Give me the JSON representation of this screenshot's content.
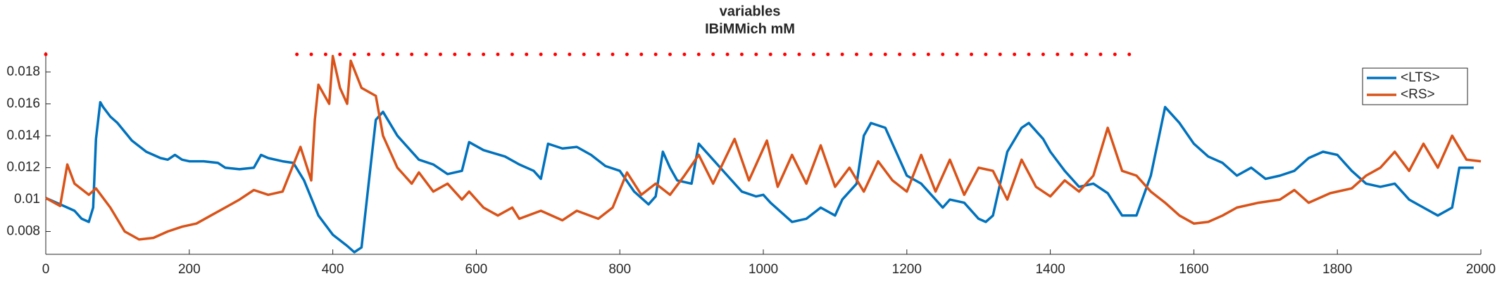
{
  "chart_data": {
    "type": "line",
    "title": "variables",
    "subtitle": "IBiMMich mM",
    "xlim": [
      0,
      2000
    ],
    "xticks": [
      0,
      200,
      400,
      600,
      800,
      1000,
      1200,
      1400,
      1600,
      1800,
      2000
    ],
    "ylim": [
      0.00657,
      0.01925
    ],
    "yticks": [
      0.008,
      0.01,
      0.012,
      0.014,
      0.016,
      0.018
    ],
    "legend": "top-right",
    "series": [
      {
        "name": "<LTS>",
        "color": "#0072bd",
        "x": [
          0,
          20,
          40,
          50,
          60,
          66,
          70,
          76,
          80,
          90,
          100,
          120,
          140,
          160,
          170,
          180,
          190,
          200,
          220,
          240,
          250,
          270,
          290,
          300,
          310,
          330,
          345,
          360,
          380,
          400,
          420,
          430,
          440,
          450,
          460,
          470,
          490,
          520,
          540,
          560,
          580,
          590,
          610,
          640,
          660,
          680,
          690,
          700,
          720,
          740,
          760,
          780,
          800,
          820,
          840,
          850,
          860,
          870,
          880,
          900,
          910,
          930,
          950,
          970,
          990,
          1000,
          1010,
          1030,
          1040,
          1060,
          1080,
          1100,
          1110,
          1130,
          1140,
          1150,
          1170,
          1190,
          1200,
          1220,
          1240,
          1250,
          1260,
          1280,
          1300,
          1310,
          1320,
          1330,
          1340,
          1360,
          1370,
          1390,
          1400,
          1420,
          1440,
          1460,
          1480,
          1500,
          1520,
          1540,
          1560,
          1580,
          1600,
          1620,
          1640,
          1660,
          1680,
          1700,
          1720,
          1740,
          1760,
          1780,
          1800,
          1820,
          1840,
          1860,
          1880,
          1900,
          1920,
          1940,
          1960,
          1970,
          1990
        ],
        "values": [
          0.0101,
          0.0097,
          0.0093,
          0.0088,
          0.0086,
          0.0095,
          0.0138,
          0.0161,
          0.0158,
          0.0152,
          0.0148,
          0.0137,
          0.013,
          0.0126,
          0.0125,
          0.0128,
          0.0125,
          0.0124,
          0.0124,
          0.0123,
          0.012,
          0.0119,
          0.012,
          0.0128,
          0.0126,
          0.0124,
          0.0123,
          0.0112,
          0.009,
          0.0078,
          0.0071,
          0.0067,
          0.007,
          0.011,
          0.015,
          0.0155,
          0.014,
          0.0125,
          0.0122,
          0.0116,
          0.0118,
          0.0136,
          0.0131,
          0.0127,
          0.0122,
          0.0118,
          0.0113,
          0.0135,
          0.0132,
          0.0133,
          0.0128,
          0.0121,
          0.0118,
          0.0105,
          0.0097,
          0.0102,
          0.013,
          0.012,
          0.0112,
          0.011,
          0.0135,
          0.0125,
          0.0115,
          0.0105,
          0.0102,
          0.0103,
          0.0098,
          0.009,
          0.0086,
          0.0088,
          0.0095,
          0.009,
          0.01,
          0.011,
          0.014,
          0.0148,
          0.0145,
          0.0125,
          0.0115,
          0.011,
          0.01,
          0.0095,
          0.01,
          0.0098,
          0.0088,
          0.0086,
          0.009,
          0.011,
          0.013,
          0.0145,
          0.0148,
          0.0138,
          0.013,
          0.0118,
          0.0108,
          0.011,
          0.0104,
          0.009,
          0.009,
          0.0115,
          0.0158,
          0.0148,
          0.0135,
          0.0127,
          0.0123,
          0.0115,
          0.012,
          0.0113,
          0.0115,
          0.0118,
          0.0126,
          0.013,
          0.0128,
          0.0118,
          0.011,
          0.0108,
          0.011,
          0.01,
          0.0095,
          0.009,
          0.0095,
          0.012,
          0.012
        ]
      },
      {
        "name": "<RS>",
        "color": "#d95319",
        "x": [
          0,
          20,
          30,
          40,
          60,
          70,
          90,
          110,
          130,
          150,
          170,
          190,
          210,
          230,
          250,
          270,
          290,
          310,
          330,
          355,
          370,
          375,
          380,
          395,
          400,
          410,
          420,
          425,
          440,
          460,
          470,
          490,
          500,
          510,
          520,
          540,
          560,
          580,
          590,
          610,
          630,
          650,
          660,
          690,
          720,
          740,
          770,
          790,
          810,
          830,
          850,
          870,
          890,
          910,
          930,
          960,
          980,
          1005,
          1020,
          1040,
          1060,
          1080,
          1100,
          1120,
          1140,
          1160,
          1180,
          1200,
          1220,
          1240,
          1260,
          1280,
          1300,
          1320,
          1340,
          1360,
          1380,
          1400,
          1420,
          1440,
          1460,
          1480,
          1500,
          1520,
          1540,
          1560,
          1580,
          1600,
          1620,
          1640,
          1660,
          1690,
          1720,
          1740,
          1760,
          1790,
          1820,
          1840,
          1860,
          1880,
          1900,
          1920,
          1940,
          1960,
          1980,
          2000
        ],
        "values": [
          0.0101,
          0.0096,
          0.0122,
          0.011,
          0.0103,
          0.0107,
          0.0095,
          0.008,
          0.0075,
          0.0076,
          0.008,
          0.0083,
          0.0085,
          0.009,
          0.0095,
          0.01,
          0.0106,
          0.0103,
          0.0105,
          0.0133,
          0.0112,
          0.015,
          0.0172,
          0.016,
          0.019,
          0.017,
          0.016,
          0.0187,
          0.017,
          0.0165,
          0.014,
          0.012,
          0.0115,
          0.011,
          0.0117,
          0.0105,
          0.011,
          0.01,
          0.0105,
          0.0095,
          0.009,
          0.0095,
          0.0088,
          0.0093,
          0.0087,
          0.0093,
          0.0088,
          0.0095,
          0.0117,
          0.0103,
          0.011,
          0.0103,
          0.0115,
          0.0128,
          0.011,
          0.0138,
          0.0112,
          0.0137,
          0.0108,
          0.0128,
          0.011,
          0.0134,
          0.0108,
          0.012,
          0.0105,
          0.0124,
          0.0112,
          0.0105,
          0.0128,
          0.0105,
          0.0125,
          0.0103,
          0.012,
          0.0118,
          0.01,
          0.0125,
          0.0108,
          0.0102,
          0.0112,
          0.0105,
          0.0115,
          0.0145,
          0.0118,
          0.0115,
          0.0105,
          0.0098,
          0.009,
          0.0085,
          0.0086,
          0.009,
          0.0095,
          0.0098,
          0.01,
          0.0106,
          0.0098,
          0.0104,
          0.0107,
          0.0115,
          0.012,
          0.013,
          0.0118,
          0.0135,
          0.012,
          0.014,
          0.0125,
          0.0124
        ]
      }
    ],
    "markers": {
      "color": "#ff0000",
      "y": 0.0191,
      "x_from": 350,
      "x_to": 1510,
      "step": 20,
      "single_x": 0
    }
  }
}
